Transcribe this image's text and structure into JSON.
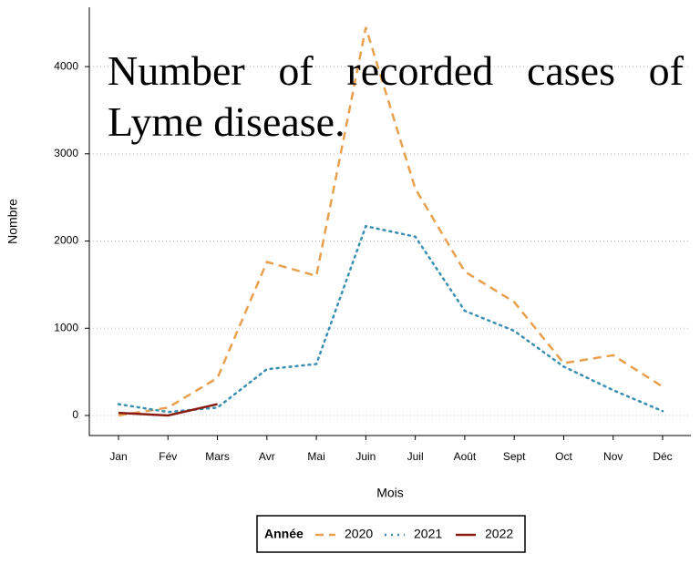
{
  "chart_data": {
    "type": "line",
    "title": "Number of recorded cases of Lyme disease.",
    "x_label": "Mois",
    "y_label": "Nombre",
    "categories": [
      "Jan",
      "Fév",
      "Mars",
      "Avr",
      "Mai",
      "Juin",
      "Juil",
      "Août",
      "Sept",
      "Oct",
      "Nov",
      "Déc"
    ],
    "series": [
      {
        "name": "2020",
        "color": "#e8a04e",
        "dash": "dashed",
        "values": [
          0,
          90,
          430,
          1760,
          1600,
          4450,
          2600,
          1650,
          1300,
          600,
          690,
          330
        ]
      },
      {
        "name": "2021",
        "color": "#3a8fb0",
        "dash": "dotted",
        "values": [
          130,
          40,
          90,
          530,
          590,
          2170,
          2050,
          1200,
          970,
          560,
          290,
          50
        ]
      },
      {
        "name": "2022",
        "color": "#8b1a10",
        "dash": "solid",
        "values": [
          30,
          0,
          130,
          null,
          null,
          null,
          null,
          null,
          null,
          null,
          null,
          null
        ]
      }
    ],
    "legend_title": "Année",
    "legend": "bottom",
    "ylim": [
      -230,
      4680
    ],
    "yticks": [
      0,
      1000,
      2000,
      3000,
      4000
    ],
    "grid": true
  }
}
